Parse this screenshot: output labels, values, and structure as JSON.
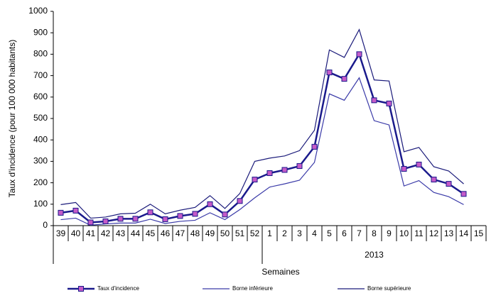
{
  "chart_data": {
    "type": "line",
    "ylabel": "Taux d'incidence (pour 100 000 habitants)",
    "xlabel": "Semaines",
    "x_group_label": "2013",
    "categories": [
      "39",
      "40",
      "41",
      "42",
      "43",
      "44",
      "45",
      "46",
      "47",
      "48",
      "49",
      "50",
      "51",
      "52",
      "1",
      "2",
      "3",
      "4",
      "5",
      "6",
      "7",
      "8",
      "9",
      "10",
      "11",
      "12",
      "13",
      "14",
      "15"
    ],
    "series": [
      {
        "name": "Taux d'incidence",
        "color": "#1a1a8c",
        "marker_color": "#c45ac8",
        "values": [
          60,
          70,
          15,
          20,
          32,
          32,
          62,
          30,
          45,
          55,
          100,
          52,
          115,
          215,
          245,
          260,
          278,
          368,
          715,
          685,
          800,
          585,
          570,
          265,
          285,
          215,
          195,
          148,
          null
        ]
      },
      {
        "name": "Borne inférieure",
        "color": "#3a3aa8",
        "values": [
          28,
          35,
          2,
          8,
          12,
          12,
          30,
          10,
          20,
          25,
          60,
          28,
          75,
          130,
          180,
          195,
          212,
          295,
          615,
          585,
          690,
          490,
          470,
          185,
          210,
          155,
          135,
          98,
          null
        ]
      },
      {
        "name": "Borne supérieure",
        "color": "#1a1a7a",
        "values": [
          98,
          108,
          35,
          40,
          55,
          58,
          100,
          55,
          72,
          85,
          140,
          80,
          150,
          300,
          315,
          325,
          350,
          445,
          820,
          785,
          915,
          680,
          675,
          345,
          365,
          275,
          255,
          195,
          null
        ]
      }
    ],
    "ylim": [
      0,
      1000
    ],
    "yticks": [
      0,
      100,
      200,
      300,
      400,
      500,
      600,
      700,
      800,
      900,
      1000
    ],
    "grid": false
  }
}
